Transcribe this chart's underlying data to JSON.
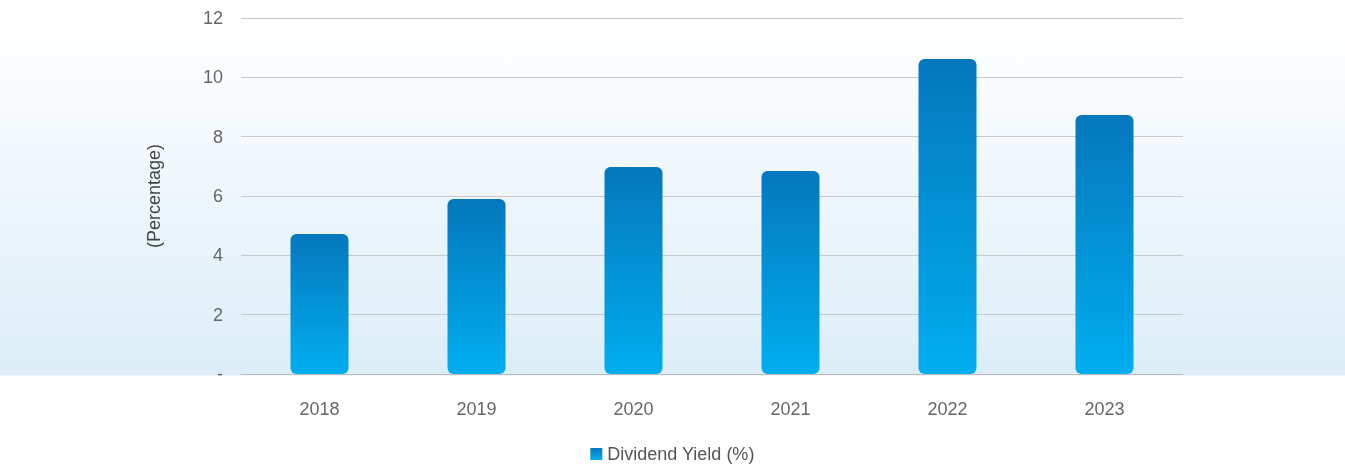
{
  "chart_data": {
    "type": "bar",
    "ylabel": "(Percentage)",
    "categories": [
      "2018",
      "2019",
      "2020",
      "2021",
      "2022",
      "2023"
    ],
    "series": [
      {
        "name": "Dividend Yield (%)",
        "color": "#0577bd",
        "values": [
          4.72,
          5.9,
          6.98,
          6.84,
          10.62,
          8.73
        ]
      }
    ],
    "ylim": [
      0,
      12
    ],
    "yticks": [
      {
        "value": 0,
        "label": "-"
      },
      2,
      4,
      6,
      8,
      10,
      12
    ],
    "grid": "y",
    "legend": "bottom"
  }
}
